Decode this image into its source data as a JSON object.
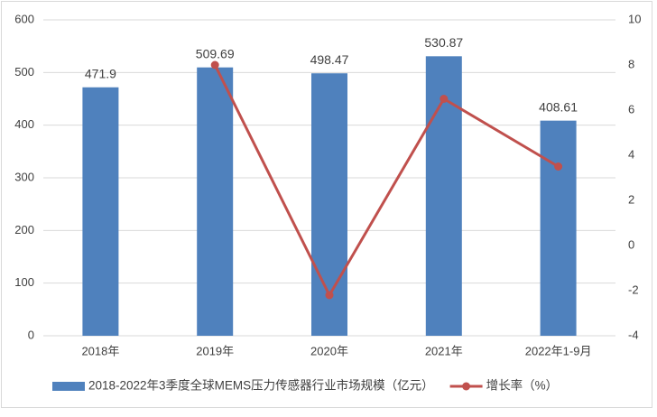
{
  "chart_data": {
    "type": "bar",
    "categories": [
      "2018年",
      "2019年",
      "2020年",
      "2021年",
      "2022年1-9月"
    ],
    "series": [
      {
        "name": "2018-2022年3季度全球MEMS压力传感器行业市场规模（亿元）",
        "type": "bar",
        "color": "#4f81bd",
        "values": [
          471.9,
          509.69,
          498.47,
          530.87,
          408.61
        ]
      },
      {
        "name": "增长率（%）",
        "type": "line",
        "axis": "y2",
        "color": "#c0504d",
        "values": [
          null,
          8.0,
          -2.2,
          6.5,
          3.5
        ]
      }
    ],
    "ylim": [
      0,
      600
    ],
    "yticks": [
      0,
      100,
      200,
      300,
      400,
      500,
      600
    ],
    "y2lim": [
      -4,
      10
    ],
    "y2ticks": [
      -4,
      -2,
      0,
      2,
      4,
      6,
      8,
      10
    ],
    "grid": true,
    "legend": "bottom"
  }
}
